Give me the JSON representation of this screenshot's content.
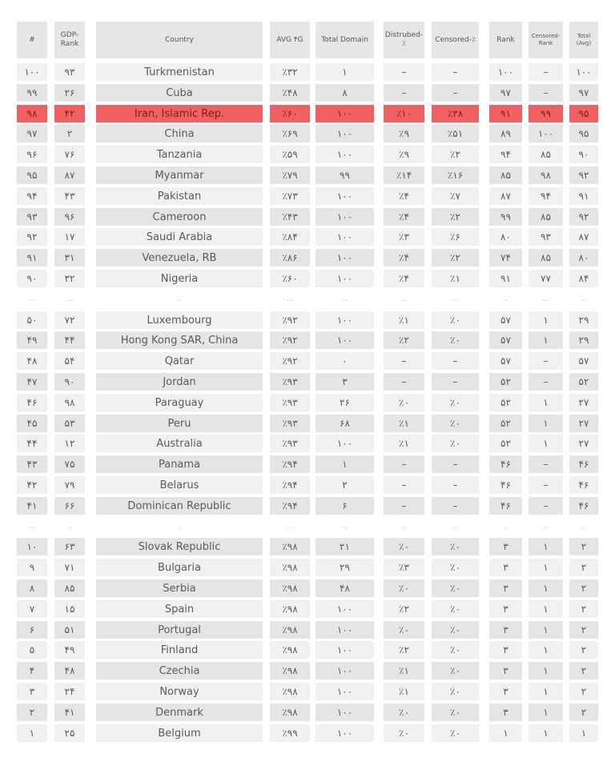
{
  "columns": [
    "#",
    "GDP-\nRank",
    "Country",
    "AVG ۴G",
    "Total Domain",
    "Distrubed-٪",
    "Censored-٪",
    "Rank",
    "Censored-\nRank",
    "Total\n(Avg)"
  ],
  "colors": {
    "header_bg": "#e6e6e6",
    "row_light": "#f1f1f1",
    "row_dark": "#e5e5e5",
    "highlight": "#f26161"
  },
  "ellipsis": [
    "...",
    "...",
    "..",
    "...",
    "...",
    "...",
    "...",
    "..",
    "...",
    ".."
  ],
  "sections": [
    {
      "rows": [
        {
          "cells": [
            "۱۰۰",
            "۹۳",
            "Turkmenistan",
            "٪۳۲",
            "۱",
            "–",
            "–",
            "۱۰۰",
            "–",
            "۱۰۰"
          ]
        },
        {
          "cells": [
            "۹۹",
            "۲۶",
            "Cuba",
            "٪۴۸",
            "۸",
            "–",
            "–",
            "۹۷",
            "–",
            "۹۷"
          ]
        },
        {
          "cells": [
            "۹۸",
            "۴۲",
            "Iran, Islamic Rep.",
            "٪۶۰",
            "۱۰۰",
            "٪۱۰",
            "٪۳۸",
            "۹۱",
            "۹۹",
            "۹۵"
          ],
          "highlighted": true
        },
        {
          "cells": [
            "۹۷",
            "۲",
            "China",
            "٪۶۹",
            "۱۰۰",
            "٪۹",
            "٪۵۱",
            "۸۹",
            "۱۰۰",
            "۹۵"
          ]
        },
        {
          "cells": [
            "۹۶",
            "۷۶",
            "Tanzania",
            "٪۵۹",
            "۱۰۰",
            "٪۹",
            "٪۲",
            "۹۴",
            "۸۵",
            "۹۰"
          ]
        },
        {
          "cells": [
            "۹۵",
            "۸۷",
            "Myanmar",
            "٪۷۹",
            "۹۹",
            "٪۱۴",
            "٪۱۶",
            "۸۵",
            "۹۸",
            "۹۲"
          ]
        },
        {
          "cells": [
            "۹۴",
            "۴۳",
            "Pakistan",
            "٪۷۳",
            "۱۰۰",
            "٪۴",
            "٪۷",
            "۸۷",
            "۹۴",
            "۹۱"
          ]
        },
        {
          "cells": [
            "۹۳",
            "۹۶",
            "Cameroon",
            "٪۴۳",
            "۱۰۰",
            "٪۴",
            "٪۲",
            "۹۹",
            "۸۵",
            "۹۲"
          ]
        },
        {
          "cells": [
            "۹۲",
            "۱۷",
            "Saudi Arabia",
            "٪۸۴",
            "۱۰۰",
            "٪۳",
            "٪۶",
            "۸۰",
            "۹۳",
            "۸۷"
          ]
        },
        {
          "cells": [
            "۹۱",
            "۳۱",
            "Venezuela, RB",
            "٪۸۶",
            "۱۰۰",
            "٪۴",
            "٪۲",
            "۷۴",
            "۸۵",
            "۸۰"
          ]
        },
        {
          "cells": [
            "۹۰",
            "۳۲",
            "Nigeria",
            "٪۶۰",
            "۱۰۰",
            "٪۴",
            "٪۱",
            "۹۱",
            "۷۷",
            "۸۴"
          ]
        }
      ]
    },
    {
      "rows": [
        {
          "cells": [
            "۵۰",
            "۷۲",
            "Luxembourg",
            "٪۹۲",
            "۱۰۰",
            "٪۱",
            "٪۰",
            "۵۷",
            "۱",
            "۲۹"
          ]
        },
        {
          "cells": [
            "۴۹",
            "۴۴",
            "Hong Kong SAR, China",
            "٪۹۲",
            "۱۰۰",
            "٪۲",
            "٪۰",
            "۵۷",
            "۱",
            "۲۹"
          ]
        },
        {
          "cells": [
            "۴۸",
            "۵۴",
            "Qatar",
            "٪۹۲",
            "۰",
            "–",
            "–",
            "۵۷",
            "–",
            "۵۷"
          ]
        },
        {
          "cells": [
            "۴۷",
            "۹۰",
            "Jordan",
            "٪۹۳",
            "۳",
            "–",
            "–",
            "۵۲",
            "–",
            "۵۲"
          ]
        },
        {
          "cells": [
            "۴۶",
            "۹۸",
            "Paraguay",
            "٪۹۳",
            "۲۶",
            "٪۰",
            "٪۰",
            "۵۲",
            "۱",
            "۲۷"
          ]
        },
        {
          "cells": [
            "۴۵",
            "۵۳",
            "Peru",
            "٪۹۳",
            "۶۸",
            "٪۱",
            "٪۰",
            "۵۲",
            "۱",
            "۲۷"
          ]
        },
        {
          "cells": [
            "۴۴",
            "۱۲",
            "Australia",
            "٪۹۳",
            "۱۰۰",
            "٪۱",
            "٪۰",
            "۵۲",
            "۱",
            "۲۷"
          ]
        },
        {
          "cells": [
            "۴۳",
            "۷۵",
            "Panama",
            "٪۹۴",
            "۱",
            "–",
            "–",
            "۴۶",
            "–",
            "۴۶"
          ]
        },
        {
          "cells": [
            "۴۲",
            "۷۹",
            "Belarus",
            "٪۹۴",
            "۲",
            "–",
            "–",
            "۴۶",
            "–",
            "۴۶"
          ]
        },
        {
          "cells": [
            "۴۱",
            "۶۶",
            "Dominican Republic",
            "٪۹۴",
            "۶",
            "–",
            "–",
            "۴۶",
            "–",
            "۴۶"
          ]
        }
      ]
    },
    {
      "rows": [
        {
          "cells": [
            "۱۰",
            "۶۳",
            "Slovak Republic",
            "٪۹۸",
            "۲۱",
            "٪۰",
            "٪۰",
            "۳",
            "۱",
            "۲"
          ]
        },
        {
          "cells": [
            "۹",
            "۷۱",
            "Bulgaria",
            "٪۹۸",
            "۲۹",
            "٪۳",
            "٪۰",
            "۳",
            "۱",
            "۲"
          ]
        },
        {
          "cells": [
            "۸",
            "۸۵",
            "Serbia",
            "٪۹۸",
            "۴۸",
            "٪۰",
            "٪۰",
            "۳",
            "۱",
            "۲"
          ]
        },
        {
          "cells": [
            "۷",
            "۱۵",
            "Spain",
            "٪۹۸",
            "۱۰۰",
            "٪۲",
            "٪۰",
            "۳",
            "۱",
            "۲"
          ]
        },
        {
          "cells": [
            "۶",
            "۵۱",
            "Portugal",
            "٪۹۸",
            "۱۰۰",
            "٪۰",
            "٪۰",
            "۳",
            "۱",
            "۲"
          ]
        },
        {
          "cells": [
            "۵",
            "۴۹",
            "Finland",
            "٪۹۸",
            "۱۰۰",
            "٪۲",
            "٪۰",
            "۳",
            "۱",
            "۲"
          ]
        },
        {
          "cells": [
            "۴",
            "۴۸",
            "Czechia",
            "٪۹۸",
            "۱۰۰",
            "٪۱",
            "٪۰",
            "۳",
            "۱",
            "۲"
          ]
        },
        {
          "cells": [
            "۳",
            "۲۴",
            "Norway",
            "٪۹۸",
            "۱۰۰",
            "٪۱",
            "٪۰",
            "۳",
            "۱",
            "۲"
          ]
        },
        {
          "cells": [
            "۲",
            "۴۱",
            "Denmark",
            "٪۹۸",
            "۱۰۰",
            "٪۰",
            "٪۰",
            "۳",
            "۱",
            "۲"
          ]
        },
        {
          "cells": [
            "۱",
            "۲۵",
            "Belgium",
            "٪۹۹",
            "۱۰۰",
            "٪۰",
            "٪۰",
            "۱",
            "۱",
            "۱"
          ]
        }
      ]
    }
  ]
}
